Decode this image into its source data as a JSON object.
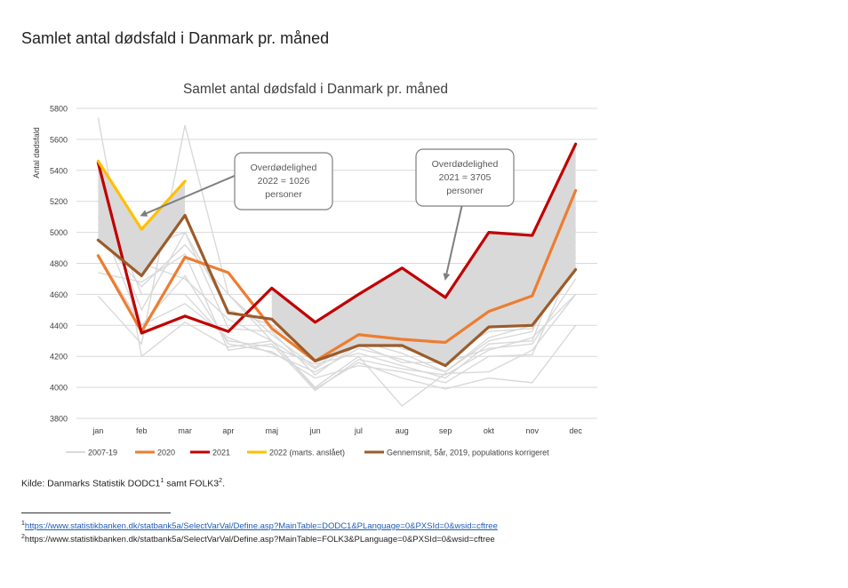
{
  "page": {
    "title": "Samlet antal dødsfald i Danmark pr. måned",
    "source": {
      "prefix": "Kilde: Danmarks Statistik DODC1",
      "sup1": "1",
      "middle": " samt FOLK3",
      "sup2": "2",
      "suffix": "."
    },
    "footnotes": [
      {
        "marker": "1",
        "text": "https://www.statistikbanken.dk/statbank5a/SelectVarVal/Define.asp?MainTable=DODC1&PLanguage=0&PXSId=0&wsid=cftree"
      },
      {
        "marker": "2",
        "text": "https://www.statistikbanken.dk/statbank5a/SelectVarVal/Define.asp?MainTable=FOLK3&PLanguage=0&PXSId=0&wsid=cftree"
      }
    ]
  },
  "chart_data": {
    "type": "line",
    "title": "Samlet antal dødsfald i Danmark pr. måned",
    "xlabel": "",
    "ylabel": "Antal dødsfald",
    "categories": [
      "jan",
      "feb",
      "mar",
      "apr",
      "maj",
      "jun",
      "jul",
      "aug",
      "sep",
      "okt",
      "nov",
      "dec"
    ],
    "yticks": [
      "3800",
      "4000",
      "4200",
      "4400",
      "4600",
      "4800",
      "5000",
      "5200",
      "5400",
      "5600",
      "5800"
    ],
    "ylim": [
      3800,
      5800
    ],
    "grid": true,
    "legend_position": "bottom",
    "background_series": {
      "name": "2007-19",
      "color": "#d9d9d9",
      "lines": [
        [
          5740,
          4200,
          4420,
          4260,
          4300,
          3990,
          4160,
          4060,
          3990,
          4060,
          4030,
          4400
        ],
        [
          4590,
          4280,
          5690,
          4600,
          4300,
          4000,
          4200,
          3880,
          4090,
          4100,
          4240,
          4600
        ],
        [
          5200,
          4500,
          5000,
          4380,
          4360,
          4080,
          4280,
          4160,
          4160,
          4250,
          4280,
          4700
        ],
        [
          4860,
          4400,
          4720,
          4280,
          4230,
          4060,
          4140,
          4100,
          4030,
          4200,
          4210,
          4840
        ],
        [
          5050,
          4800,
          4700,
          4440,
          4300,
          4120,
          4300,
          4220,
          4100,
          4300,
          4360,
          4940
        ],
        [
          5300,
          4600,
          4600,
          4300,
          4260,
          4150,
          4220,
          4140,
          4060,
          4280,
          4300,
          5020
        ],
        [
          4950,
          4900,
          5000,
          4500,
          4400,
          4200,
          4400,
          4250,
          4180,
          4380,
          4450,
          5160
        ],
        [
          4740,
          4680,
          4860,
          4240,
          4280,
          3980,
          4180,
          4120,
          4080,
          4240,
          4320,
          4600
        ],
        [
          5100,
          4400,
          4540,
          4320,
          4220,
          4100,
          4250,
          4180,
          4100,
          4320,
          4400,
          4780
        ],
        [
          4980,
          4650,
          4920,
          4600,
          4340,
          4130,
          4330,
          4300,
          4200,
          4360,
          4380,
          4880
        ]
      ]
    },
    "series": [
      {
        "name": "2020",
        "color": "#ed7d31",
        "width": 3.2,
        "values": [
          4850,
          4360,
          4840,
          4740,
          4380,
          4170,
          4340,
          4310,
          4290,
          4490,
          4590,
          5270
        ]
      },
      {
        "name": "2021",
        "color": "#c00000",
        "width": 3.2,
        "values": [
          5450,
          4350,
          4460,
          4360,
          4640,
          4420,
          4600,
          4770,
          4580,
          5000,
          4980,
          5570
        ]
      },
      {
        "name": "2022 (marts. anslået)",
        "color": "#ffc000",
        "width": 3.2,
        "values": [
          5460,
          5020,
          5330,
          null,
          null,
          null,
          null,
          null,
          null,
          null,
          null,
          null
        ]
      },
      {
        "name": "Gennemsnit, 5år, 2019, populations korrigeret",
        "color": "#9c5b2a",
        "width": 3.2,
        "values": [
          4950,
          4720,
          5110,
          4480,
          4440,
          4170,
          4270,
          4270,
          4140,
          4390,
          4400,
          4760
        ]
      }
    ],
    "shaded_areas": [
      {
        "color": "#d9d9d9",
        "upper": "2022 (marts. anslået)",
        "lower": "Gennemsnit, 5år, 2019, populations korrigeret",
        "from": "jan",
        "to": "mar"
      },
      {
        "color": "#d9d9d9",
        "upper": "2021",
        "lower": "Gennemsnit, 5år, 2019, populations korrigeret",
        "from": "maj",
        "to": "dec"
      }
    ],
    "annotations": [
      {
        "lines": [
          "Overdødelighed",
          "2022 = 1026",
          "personer"
        ],
        "arrow_to": [
          "feb",
          5110
        ]
      },
      {
        "lines": [
          "Overdødelighed",
          "2021 = 3705",
          "personer"
        ],
        "arrow_to": [
          "sep",
          4700
        ]
      }
    ],
    "legend": [
      "2007-19",
      "2020",
      "2021",
      "2022 (marts. anslået)",
      "Gennemsnit, 5år, 2019, populations korrigeret"
    ]
  }
}
